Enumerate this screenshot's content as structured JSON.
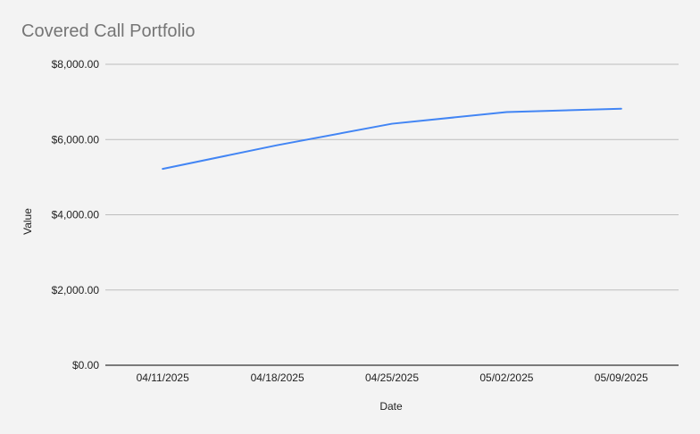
{
  "chart_data": {
    "type": "line",
    "title": "Covered Call Portfolio",
    "xlabel": "Date",
    "ylabel": "Value",
    "categories": [
      "04/11/2025",
      "04/18/2025",
      "04/25/2025",
      "05/02/2025",
      "05/09/2025"
    ],
    "series": [
      {
        "values": [
          5220,
          5850,
          6420,
          6730,
          6820
        ]
      }
    ],
    "ylim": [
      0,
      8000
    ],
    "yticks": [
      0,
      2000,
      4000,
      6000,
      8000
    ],
    "ytick_labels": [
      "$0.00",
      "$2,000.00",
      "$4,000.00",
      "$6,000.00",
      "$8,000.00"
    ],
    "grid": true,
    "legend": "none",
    "colors": {
      "line": "#4285f4",
      "grid": "#bdbdbd",
      "axis": "#333333",
      "background": "#f3f3f3",
      "title": "#757575"
    }
  }
}
